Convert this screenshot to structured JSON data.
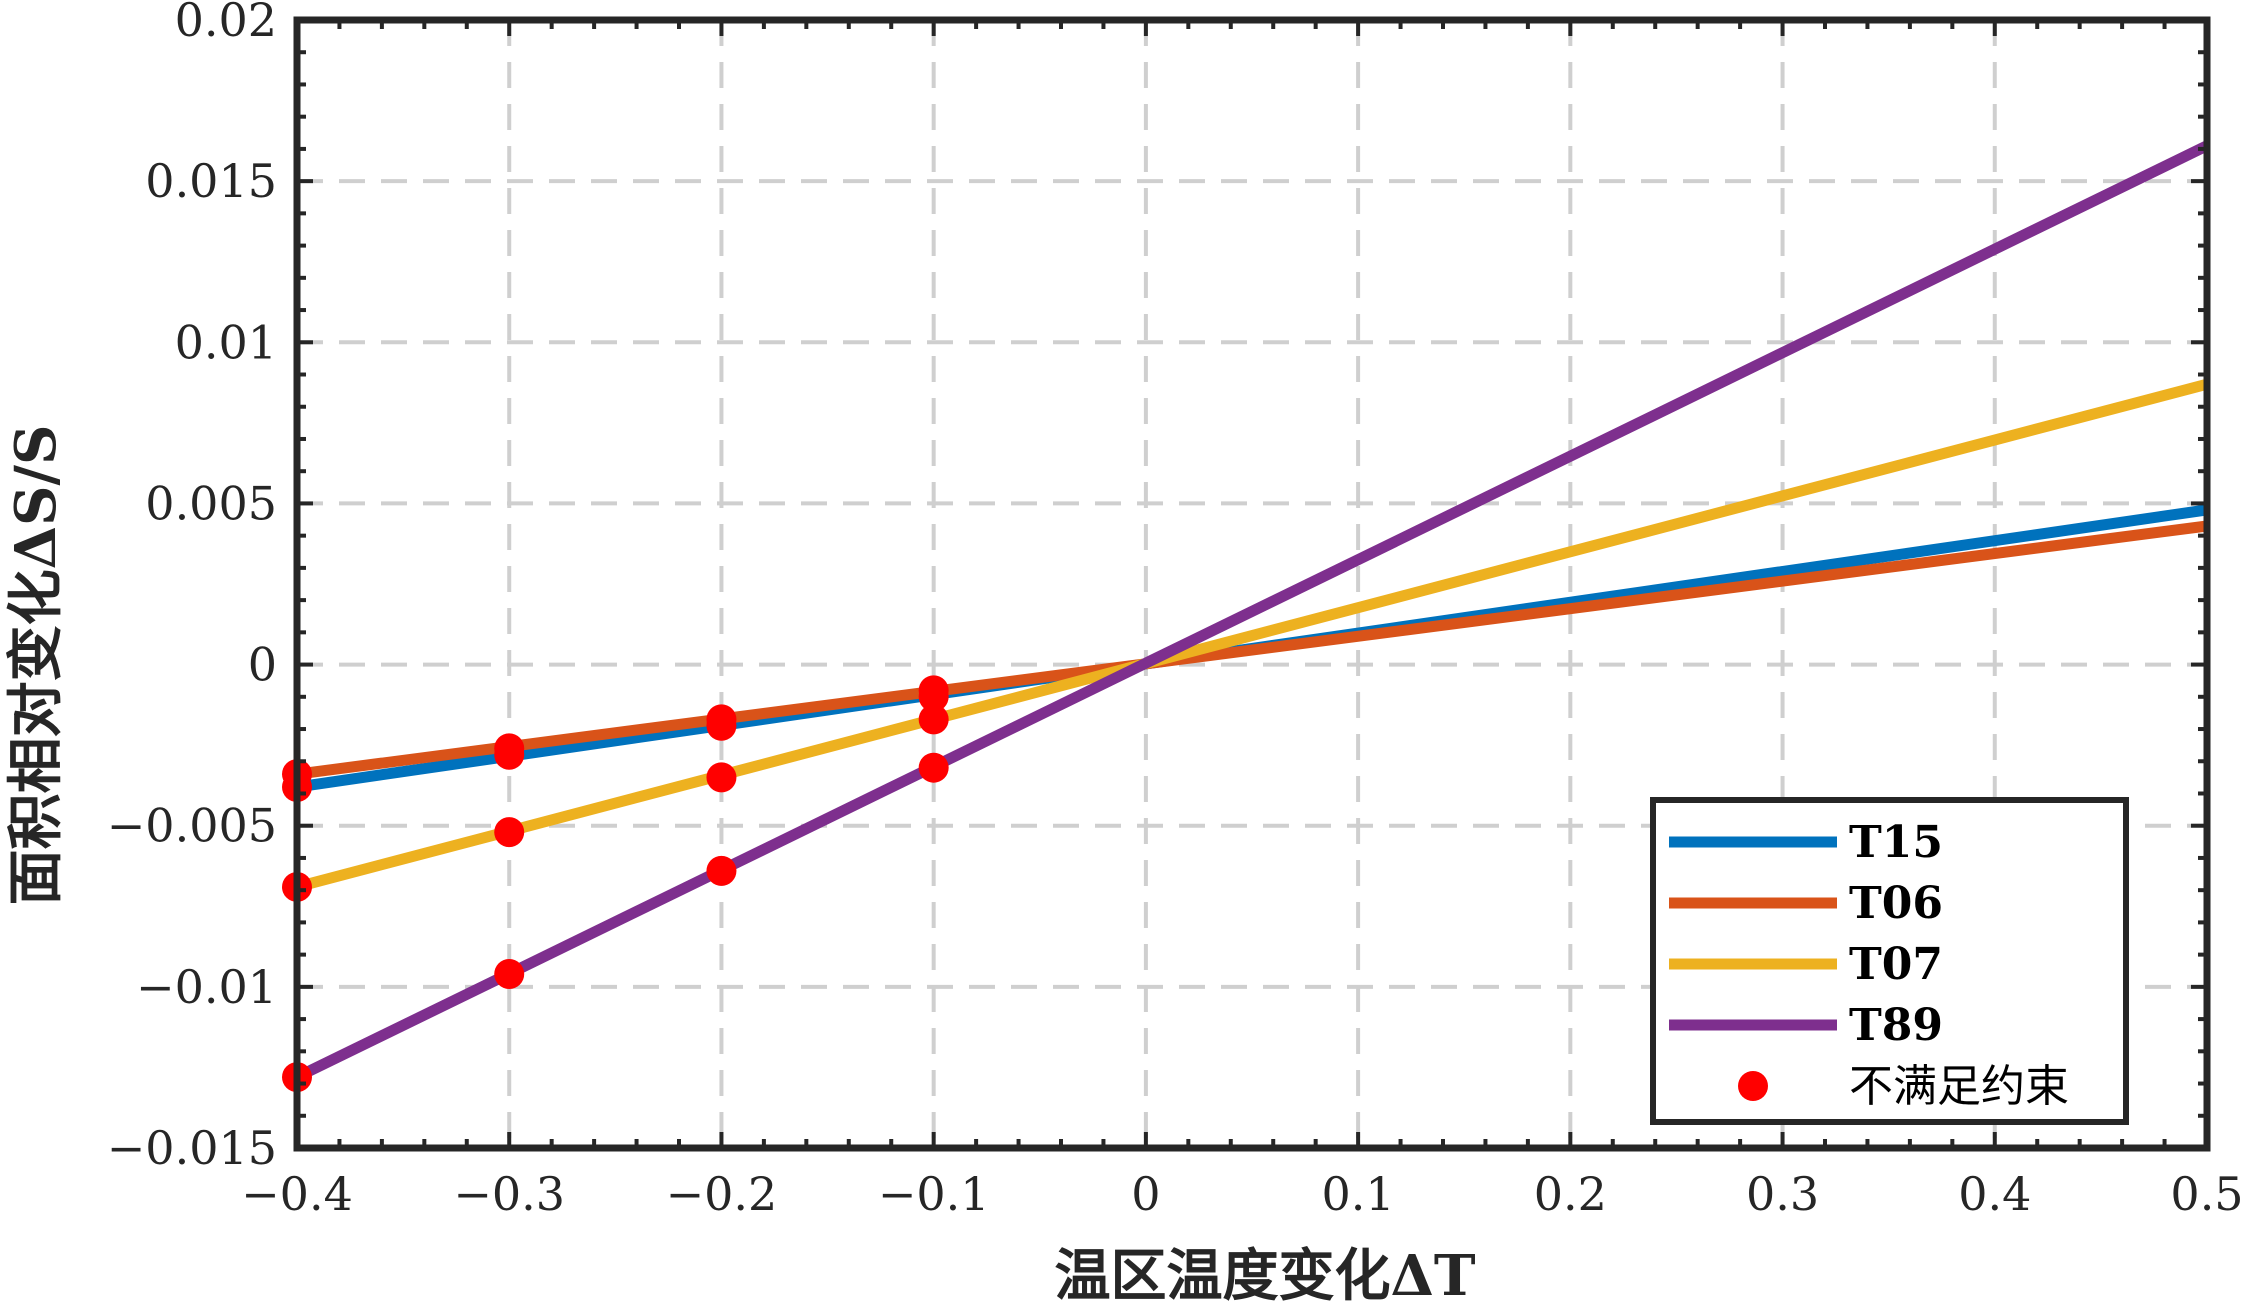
{
  "chart_data": {
    "type": "line",
    "title": "",
    "xlabel": "温区温度变化ΔT",
    "ylabel": "面积相对变化ΔS/S",
    "xlim": [
      -0.4,
      0.5
    ],
    "ylim": [
      -0.015,
      0.02
    ],
    "x_ticks": [
      -0.4,
      -0.3,
      -0.2,
      -0.1,
      0,
      0.1,
      0.2,
      0.3,
      0.4,
      0.5
    ],
    "x_tick_labels": [
      "−0.4",
      "−0.3",
      "−0.2",
      "−0.1",
      "0",
      "0.1",
      "0.2",
      "0.3",
      "0.4",
      "0.5"
    ],
    "y_ticks": [
      -0.015,
      -0.01,
      -0.005,
      0,
      0.005,
      0.01,
      0.015,
      0.02
    ],
    "y_tick_labels": [
      "−0.015",
      "−0.01",
      "−0.005",
      "0",
      "0.005",
      "0.01",
      "0.015",
      "0.02"
    ],
    "grid": true,
    "legend_position": "bottom-right",
    "series": [
      {
        "name": "T15",
        "color": "#0072BD",
        "x": [
          -0.4,
          0.5
        ],
        "y": [
          -0.0038,
          0.0048
        ]
      },
      {
        "name": "T06",
        "color": "#D95319",
        "x": [
          -0.4,
          0.5
        ],
        "y": [
          -0.0034,
          0.0043
        ]
      },
      {
        "name": "T07",
        "color": "#EDB120",
        "x": [
          -0.4,
          0.5
        ],
        "y": [
          -0.0069,
          0.0087
        ]
      },
      {
        "name": "T89",
        "color": "#7E2F8E",
        "x": [
          -0.4,
          0.5
        ],
        "y": [
          -0.0128,
          0.0161
        ]
      }
    ],
    "marker_series": {
      "name": "不满足约束",
      "color": "#FF0000",
      "points": [
        {
          "x": -0.4,
          "y": -0.0034
        },
        {
          "x": -0.4,
          "y": -0.0038
        },
        {
          "x": -0.4,
          "y": -0.0069
        },
        {
          "x": -0.4,
          "y": -0.0128
        },
        {
          "x": -0.3,
          "y": -0.0026
        },
        {
          "x": -0.3,
          "y": -0.0028
        },
        {
          "x": -0.3,
          "y": -0.0052
        },
        {
          "x": -0.3,
          "y": -0.0096
        },
        {
          "x": -0.2,
          "y": -0.0017
        },
        {
          "x": -0.2,
          "y": -0.0019
        },
        {
          "x": -0.2,
          "y": -0.0035
        },
        {
          "x": -0.2,
          "y": -0.0064
        },
        {
          "x": -0.1,
          "y": -0.0008
        },
        {
          "x": -0.1,
          "y": -0.001
        },
        {
          "x": -0.1,
          "y": -0.0017
        },
        {
          "x": -0.1,
          "y": -0.0032
        }
      ]
    }
  }
}
